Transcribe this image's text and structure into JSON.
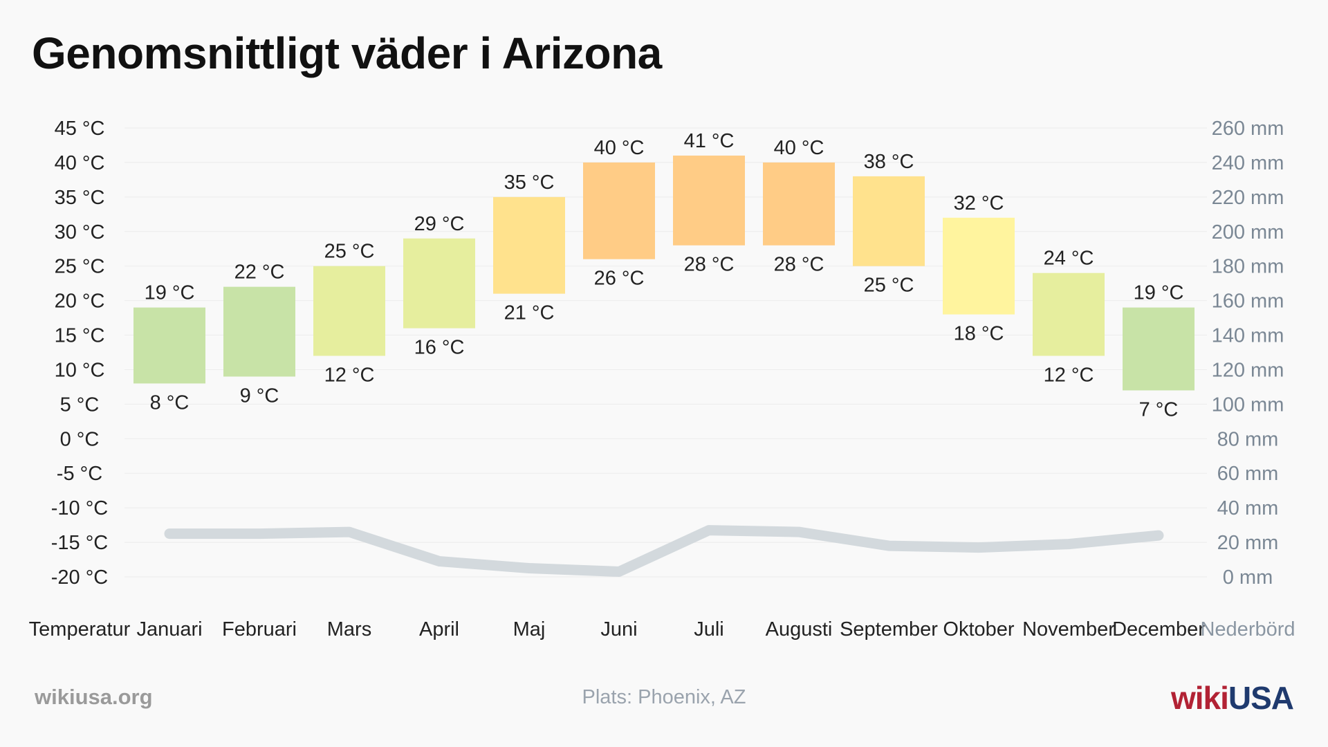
{
  "title": "Genomsnittligt väder i Arizona",
  "chart_data": {
    "type": "bar",
    "categories": [
      "Januari",
      "Februari",
      "Mars",
      "April",
      "Maj",
      "Juni",
      "Juli",
      "Augusti",
      "September",
      "Oktober",
      "November",
      "December"
    ],
    "series": [
      {
        "name": "",
        "type": "floating-bar",
        "low": [
          8,
          9,
          12,
          16,
          21,
          26,
          28,
          28,
          25,
          18,
          12,
          7
        ],
        "high": [
          19,
          22,
          25,
          29,
          35,
          40,
          41,
          40,
          38,
          32,
          24,
          19
        ]
      },
      {
        "name": "",
        "type": "line",
        "axis": "right",
        "values": [
          25,
          25,
          26,
          9,
          5,
          3,
          27,
          26,
          18,
          17,
          19,
          24
        ]
      }
    ],
    "bar_colors": [
      "#c8e3a7",
      "#c8e3a7",
      "#e6ee9e",
      "#e6ee9e",
      "#ffe28d",
      "#ffcc86",
      "#ffcc86",
      "#ffcc86",
      "#ffe28d",
      "#fff49e",
      "#e6ee9e",
      "#c8e3a7"
    ],
    "line_color": "#d3d9dd",
    "y_left": {
      "label": "Temperatur",
      "unit": "°C",
      "ylim": [
        -20,
        45
      ],
      "ticks": [
        45,
        40,
        35,
        30,
        25,
        20,
        15,
        10,
        5,
        0,
        -5,
        -10,
        -15,
        -20
      ]
    },
    "y_right": {
      "label": "Nederbörd",
      "unit": "mm",
      "ylim": [
        0,
        260
      ],
      "ticks": [
        260,
        240,
        220,
        200,
        180,
        160,
        140,
        120,
        100,
        80,
        60,
        40,
        20,
        0
      ]
    },
    "grid": true,
    "legend": "none"
  },
  "footer": {
    "source": "wikiusa.org",
    "location": "Plats: Phoenix, AZ",
    "brand_a": "wiki",
    "brand_b": "USA"
  }
}
